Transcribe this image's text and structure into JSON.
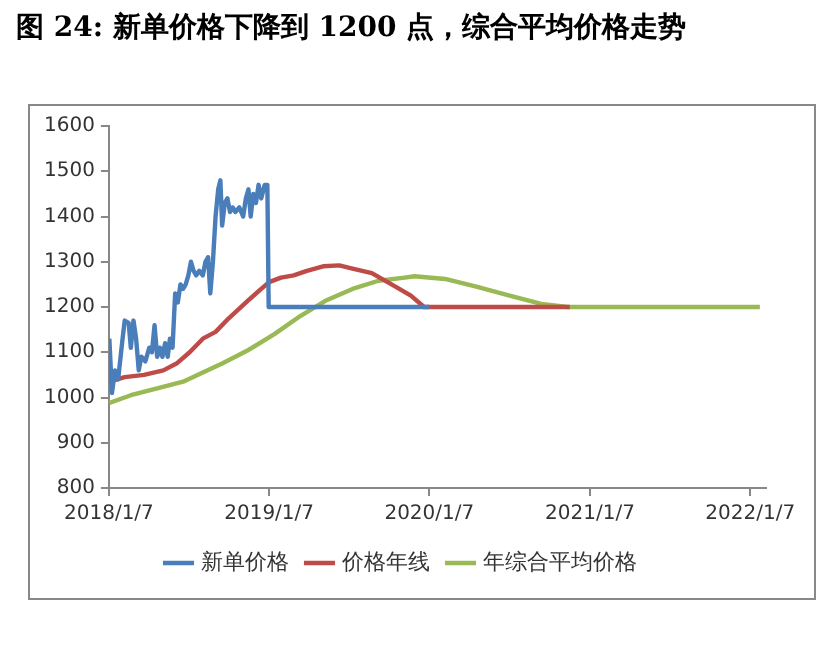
{
  "chart_data": {
    "type": "line",
    "title": "图 24: 新单价格下降到 1200 点，综合平均价格走势",
    "xlim": [
      "2018-01-07",
      "2022-02-12"
    ],
    "xticks": [
      {
        "value": "2018-01-07",
        "label": "2018/1/7"
      },
      {
        "value": "2019-01-07",
        "label": "2019/1/7"
      },
      {
        "value": "2020-01-07",
        "label": "2020/1/7"
      },
      {
        "value": "2021-01-07",
        "label": "2021/1/7"
      },
      {
        "value": "2022-01-07",
        "label": "2022/1/7"
      }
    ],
    "ylim": [
      800,
      1600
    ],
    "yticks": [
      800,
      900,
      1000,
      1100,
      1200,
      1300,
      1400,
      1500,
      1600
    ],
    "grid": false,
    "legend": "bottom",
    "marker": "none",
    "line_style": "solid",
    "series": [
      {
        "name": "新单价格",
        "color": "#4a7ebb",
        "x": [
          "2018-01-08",
          "2018-01-14",
          "2018-01-21",
          "2018-01-28",
          "2018-02-06",
          "2018-02-12",
          "2018-02-21",
          "2018-02-26",
          "2018-03-04",
          "2018-03-10",
          "2018-03-16",
          "2018-03-22",
          "2018-03-31",
          "2018-04-09",
          "2018-04-15",
          "2018-04-21",
          "2018-04-27",
          "2018-05-03",
          "2018-05-09",
          "2018-05-15",
          "2018-05-21",
          "2018-05-26",
          "2018-06-01",
          "2018-06-07",
          "2018-06-13",
          "2018-06-19",
          "2018-06-25",
          "2018-07-01",
          "2018-07-07",
          "2018-07-13",
          "2018-07-19",
          "2018-07-25",
          "2018-08-01",
          "2018-08-09",
          "2018-08-15",
          "2018-08-21",
          "2018-08-26",
          "2018-09-01",
          "2018-09-07",
          "2018-09-13",
          "2018-09-18",
          "2018-09-22",
          "2018-09-28",
          "2018-10-04",
          "2018-10-10",
          "2018-10-16",
          "2018-10-22",
          "2018-10-31",
          "2018-11-09",
          "2018-11-15",
          "2018-11-21",
          "2018-11-26",
          "2018-12-02",
          "2018-12-08",
          "2018-12-14",
          "2018-12-20",
          "2018-12-28",
          "2019-01-03",
          "2019-01-06",
          "2020-01-07"
        ],
        "values": [
          1130,
          1010,
          1060,
          1040,
          1120,
          1170,
          1165,
          1110,
          1170,
          1130,
          1060,
          1090,
          1080,
          1110,
          1100,
          1160,
          1090,
          1110,
          1090,
          1120,
          1090,
          1130,
          1110,
          1230,
          1210,
          1250,
          1240,
          1250,
          1270,
          1300,
          1280,
          1270,
          1280,
          1270,
          1300,
          1310,
          1230,
          1300,
          1400,
          1460,
          1480,
          1380,
          1430,
          1440,
          1410,
          1420,
          1410,
          1420,
          1400,
          1440,
          1460,
          1400,
          1450,
          1430,
          1470,
          1440,
          1470,
          1470,
          1200,
          1200
        ]
      },
      {
        "name": "价格年线",
        "color": "#be4b48",
        "x": [
          "2018-01-08",
          "2018-02-12",
          "2018-03-28",
          "2018-05-11",
          "2018-06-10",
          "2018-07-10",
          "2018-08-09",
          "2018-09-07",
          "2018-10-07",
          "2018-11-21",
          "2018-12-20",
          "2019-01-07",
          "2019-02-03",
          "2019-03-04",
          "2019-04-03",
          "2019-05-10",
          "2019-06-16",
          "2019-07-16",
          "2019-08-29",
          "2019-10-13",
          "2019-11-26",
          "2019-12-26",
          "2020-11-22"
        ],
        "values": [
          1035,
          1045,
          1050,
          1060,
          1075,
          1100,
          1130,
          1145,
          1175,
          1215,
          1240,
          1255,
          1265,
          1270,
          1280,
          1290,
          1292,
          1285,
          1275,
          1250,
          1225,
          1200,
          1200
        ]
      },
      {
        "name": "年综合平均价格",
        "color": "#98b954",
        "x": [
          "2018-01-08",
          "2018-02-26",
          "2018-04-27",
          "2018-06-25",
          "2018-08-09",
          "2018-09-22",
          "2018-11-21",
          "2019-01-19",
          "2019-03-19",
          "2019-05-18",
          "2019-07-16",
          "2019-09-13",
          "2019-11-12",
          "2019-12-04",
          "2020-02-12",
          "2020-04-23",
          "2020-07-08",
          "2020-09-18",
          "2020-11-17",
          "2022-01-29"
        ],
        "values": [
          988,
          1005,
          1020,
          1035,
          1055,
          1075,
          1105,
          1140,
          1180,
          1215,
          1240,
          1258,
          1265,
          1268,
          1262,
          1245,
          1225,
          1207,
          1200,
          1200
        ]
      }
    ]
  }
}
